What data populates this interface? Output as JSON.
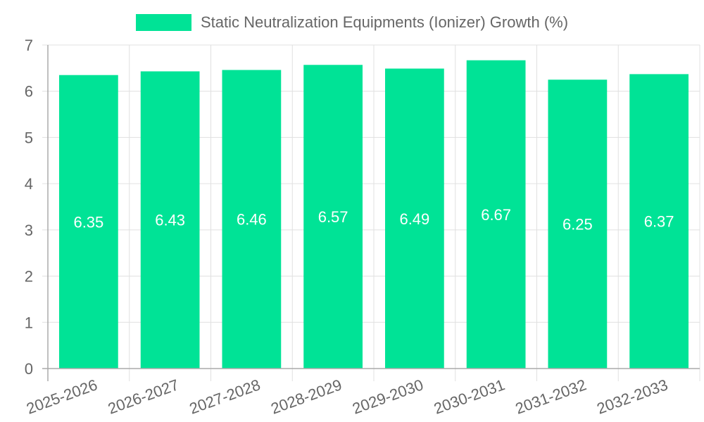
{
  "chart_data": {
    "type": "bar",
    "title": "",
    "legend": [
      {
        "label": "Static Neutralization Equipments (Ionizer) Growth (%)",
        "color": "#00e396"
      }
    ],
    "legend_position": "top",
    "categories": [
      "2025-2026",
      "2026-2027",
      "2027-2028",
      "2028-2029",
      "2029-2030",
      "2030-2031",
      "2031-2032",
      "2032-2033"
    ],
    "series": [
      {
        "name": "Static Neutralization Equipments (Ionizer) Growth (%)",
        "values": [
          6.35,
          6.43,
          6.46,
          6.57,
          6.49,
          6.67,
          6.25,
          6.37
        ],
        "color": "#00e396"
      }
    ],
    "data_labels": [
      "6.35",
      "6.43",
      "6.46",
      "6.57",
      "6.49",
      "6.67",
      "6.25",
      "6.37"
    ],
    "xlabel": "",
    "ylabel": "",
    "ylim": [
      0,
      7
    ],
    "yticks": [
      0,
      1,
      2,
      3,
      4,
      5,
      6,
      7
    ],
    "grid": true,
    "x_tick_rotation": -20
  },
  "legend": {
    "label": "Static Neutralization Equipments (Ionizer) Growth (%)",
    "color": "#00e396"
  },
  "colors": {
    "bar": "#00e396",
    "grid": "#e0e0e0",
    "axis": "#aaaaaa",
    "tick_text": "#666666",
    "label_text": "#ffffff"
  }
}
